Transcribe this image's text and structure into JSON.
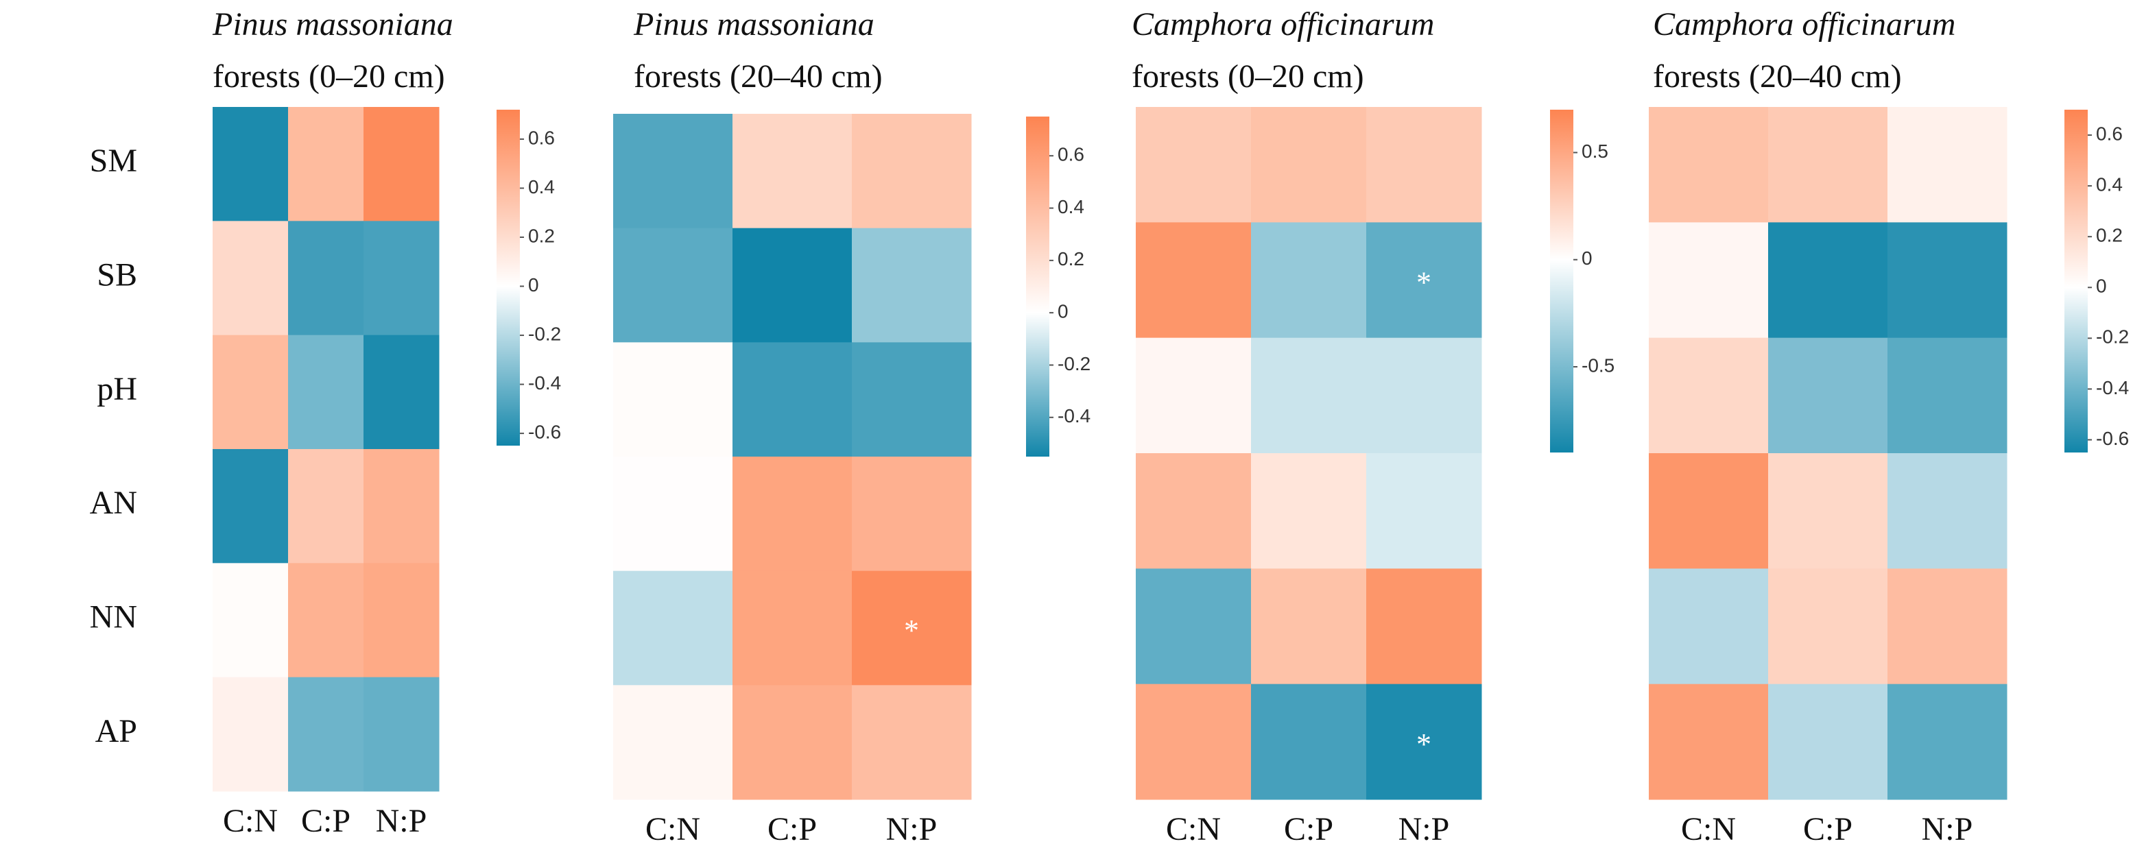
{
  "chart_data": [
    {
      "type": "heatmap",
      "title_italic": "Pinus massoniana",
      "title": "forests (0–20 cm)",
      "rows": [
        "SM",
        "SB",
        "pH",
        "AN",
        "NN",
        "AP"
      ],
      "categories": [
        "C:N",
        "C:P",
        "N:P"
      ],
      "values": [
        [
          -0.62,
          0.4,
          0.68
        ],
        [
          0.22,
          -0.52,
          -0.5
        ],
        [
          0.4,
          -0.38,
          -0.62
        ],
        [
          -0.6,
          0.32,
          0.45
        ],
        [
          0.02,
          0.45,
          0.5
        ],
        [
          0.08,
          -0.4,
          -0.42
        ]
      ],
      "labels": [
        [
          null,
          null,
          null
        ],
        [
          null,
          null,
          null
        ],
        [
          null,
          null,
          null
        ],
        [
          null,
          null,
          null
        ],
        [
          null,
          null,
          null
        ],
        [
          null,
          null,
          null
        ]
      ],
      "clim": [
        -0.65,
        0.72
      ],
      "cticks": [
        -0.6,
        -0.4,
        -0.2,
        0,
        0.2,
        0.4,
        0.6
      ],
      "colors": [
        "#1185a9",
        "#ffffff",
        "#fd8451"
      ]
    },
    {
      "type": "heatmap",
      "title_italic": "Pinus massoniana",
      "title": "forests (20–40 cm)",
      "categories": [
        "C:N",
        "C:P",
        "N:P"
      ],
      "values": [
        [
          -0.4,
          0.25,
          0.35
        ],
        [
          -0.38,
          -0.55,
          -0.25
        ],
        [
          0.02,
          -0.45,
          -0.42
        ],
        [
          0.01,
          0.55,
          0.48
        ],
        [
          -0.15,
          0.55,
          0.7
        ],
        [
          0.05,
          0.5,
          0.4
        ]
      ],
      "labels": [
        [
          null,
          null,
          null
        ],
        [
          null,
          null,
          null
        ],
        [
          null,
          null,
          null
        ],
        [
          null,
          null,
          null
        ],
        [
          null,
          null,
          "*"
        ],
        [
          null,
          null,
          null
        ]
      ],
      "clim": [
        -0.55,
        0.75
      ],
      "cticks": [
        -0.4,
        -0.2,
        0,
        0.2,
        0.4,
        0.6
      ],
      "colors": [
        "#1185a9",
        "#ffffff",
        "#fd8451"
      ]
    },
    {
      "type": "heatmap",
      "title_italic": "Camphora officinarum",
      "title": "forests (0–20 cm)",
      "categories": [
        "C:N",
        "C:P",
        "N:P"
      ],
      "values": [
        [
          0.3,
          0.35,
          0.3
        ],
        [
          0.6,
          -0.4,
          -0.6
        ],
        [
          0.05,
          -0.2,
          -0.2
        ],
        [
          0.4,
          0.15,
          -0.15
        ],
        [
          -0.6,
          0.35,
          0.6
        ],
        [
          0.5,
          -0.7,
          -0.85
        ]
      ],
      "labels": [
        [
          null,
          null,
          null
        ],
        [
          null,
          null,
          "*"
        ],
        [
          null,
          null,
          null
        ],
        [
          null,
          null,
          null
        ],
        [
          null,
          null,
          null
        ],
        [
          null,
          null,
          "*"
        ]
      ],
      "clim": [
        -0.9,
        0.7
      ],
      "cticks": [
        -0.5,
        0,
        0.5
      ],
      "colors": [
        "#1185a9",
        "#ffffff",
        "#fd8451"
      ]
    },
    {
      "type": "heatmap",
      "title_italic": "Camphora officinarum",
      "title": "forests (20–40 cm)",
      "categories": [
        "C:N",
        "C:P",
        "N:P"
      ],
      "values": [
        [
          0.35,
          0.3,
          0.08
        ],
        [
          0.05,
          -0.62,
          -0.58
        ],
        [
          0.22,
          -0.35,
          -0.45
        ],
        [
          0.6,
          0.22,
          -0.2
        ],
        [
          -0.2,
          0.25,
          0.38
        ],
        [
          0.55,
          -0.2,
          -0.45
        ]
      ],
      "labels": [
        [
          null,
          null,
          null
        ],
        [
          null,
          null,
          null
        ],
        [
          null,
          null,
          null
        ],
        [
          null,
          null,
          null
        ],
        [
          null,
          null,
          null
        ],
        [
          null,
          null,
          null
        ]
      ],
      "clim": [
        -0.65,
        0.7
      ],
      "cticks": [
        -0.6,
        -0.4,
        -0.2,
        0,
        0.2,
        0.4,
        0.6
      ],
      "colors": [
        "#1185a9",
        "#ffffff",
        "#fd8451"
      ]
    }
  ]
}
